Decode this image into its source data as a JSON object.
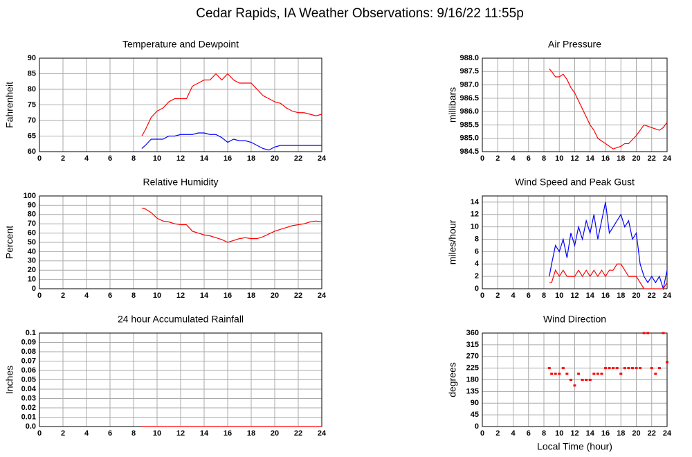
{
  "title": "Cedar Rapids, IA Weather Observations: 9/16/22 11:55p",
  "chart_data": [
    {
      "type": "line",
      "title": "Temperature and Dewpoint",
      "ylabel": "Fahrenheit",
      "x": [
        8.7,
        9,
        9.5,
        10,
        10.5,
        11,
        11.5,
        12,
        12.5,
        13,
        13.5,
        14,
        14.5,
        15,
        15.5,
        16,
        16.5,
        17,
        17.5,
        18,
        18.5,
        19,
        19.5,
        20,
        20.5,
        21,
        21.5,
        22,
        22.5,
        23,
        23.5,
        24
      ],
      "series": [
        {
          "color": "#ff0000",
          "values": [
            65,
            67,
            71,
            73,
            74,
            76,
            77,
            77,
            77,
            81,
            82,
            83,
            83,
            85,
            83,
            85,
            83,
            82,
            82,
            82,
            80,
            78,
            77,
            76,
            75.5,
            74,
            73,
            72.5,
            72.5,
            72,
            71.5,
            72
          ]
        },
        {
          "color": "#0000ff",
          "values": [
            61,
            62,
            64,
            64,
            64,
            65,
            65,
            65.5,
            65.5,
            65.5,
            66,
            66,
            65.5,
            65.5,
            64.5,
            63,
            64,
            63.5,
            63.5,
            63,
            62,
            61,
            60.5,
            61.5,
            62,
            62,
            62,
            62,
            62,
            62,
            62,
            62
          ]
        }
      ],
      "xlim": [
        0,
        24
      ],
      "xticks": [
        0,
        2,
        4,
        6,
        8,
        10,
        12,
        14,
        16,
        18,
        20,
        22,
        24
      ],
      "ylim": [
        60,
        90
      ],
      "yticks": [
        60,
        65,
        70,
        75,
        80,
        85,
        90
      ],
      "grid": true
    },
    {
      "type": "line",
      "title": "Air Pressure",
      "ylabel": "millibars",
      "x": [
        8.7,
        9,
        9.5,
        10,
        10.5,
        11,
        11.5,
        12,
        12.5,
        13,
        13.5,
        14,
        14.5,
        15,
        15.5,
        16,
        16.5,
        17,
        17.5,
        18,
        18.5,
        19,
        19.5,
        20,
        20.5,
        21,
        21.5,
        22,
        22.5,
        23,
        23.5,
        24
      ],
      "series": [
        {
          "color": "#ff0000",
          "values": [
            987.6,
            987.5,
            987.3,
            987.3,
            987.4,
            987.2,
            986.9,
            986.7,
            986.4,
            986.1,
            985.8,
            985.5,
            985.3,
            985.0,
            984.9,
            984.8,
            984.7,
            984.6,
            984.65,
            984.7,
            984.8,
            984.8,
            984.95,
            985.1,
            985.3,
            985.5,
            985.45,
            985.4,
            985.35,
            985.3,
            985.4,
            985.6
          ]
        }
      ],
      "xlim": [
        0,
        24
      ],
      "xticks": [
        0,
        2,
        4,
        6,
        8,
        10,
        12,
        14,
        16,
        18,
        20,
        22,
        24
      ],
      "ylim": [
        984.5,
        988
      ],
      "yticks": [
        984.5,
        {
          "value": 985,
          "label": "985.0"
        },
        985.5,
        {
          "value": 986,
          "label": "986.0"
        },
        986.5,
        {
          "value": 987,
          "label": "987.0"
        },
        987.5,
        {
          "value": 988,
          "label": "988.0"
        }
      ],
      "grid": true
    },
    {
      "type": "line",
      "title": "Relative Humidity",
      "ylabel": "Percent",
      "x": [
        8.7,
        9,
        9.5,
        10,
        10.5,
        11,
        11.5,
        12,
        12.5,
        13,
        13.5,
        14,
        14.5,
        15,
        15.5,
        16,
        16.5,
        17,
        17.5,
        18,
        18.5,
        19,
        19.5,
        20,
        20.5,
        21,
        21.5,
        22,
        22.5,
        23,
        23.5,
        24
      ],
      "series": [
        {
          "color": "#ff0000",
          "values": [
            87,
            86,
            82,
            76,
            73,
            72,
            70,
            69,
            69,
            62,
            60,
            58,
            57,
            55,
            53,
            50,
            52,
            54,
            55,
            54,
            54,
            56,
            59,
            62,
            64,
            66,
            68,
            69,
            70,
            72,
            73,
            72
          ]
        }
      ],
      "xlim": [
        0,
        24
      ],
      "xticks": [
        0,
        2,
        4,
        6,
        8,
        10,
        12,
        14,
        16,
        18,
        20,
        22,
        24
      ],
      "ylim": [
        0,
        100
      ],
      "yticks": [
        0,
        10,
        20,
        30,
        40,
        50,
        60,
        70,
        80,
        90,
        100
      ],
      "grid": true
    },
    {
      "type": "line",
      "title": "Wind Speed and Peak Gust",
      "ylabel": "miles/hour",
      "x": [
        8.7,
        9,
        9.5,
        10,
        10.5,
        11,
        11.5,
        12,
        12.5,
        13,
        13.5,
        14,
        14.5,
        15,
        15.5,
        16,
        16.5,
        17,
        17.5,
        18,
        18.5,
        19,
        19.5,
        20,
        20.5,
        21,
        21.5,
        22,
        22.5,
        23,
        23.5,
        24
      ],
      "series": [
        {
          "color": "#0000ff",
          "values": [
            2,
            4,
            7,
            6,
            8,
            5,
            9,
            7,
            10,
            8,
            11,
            9,
            12,
            8,
            11,
            14,
            9,
            10,
            11,
            12,
            10,
            11,
            8,
            9,
            4,
            2,
            1,
            2,
            1,
            2,
            0,
            3
          ]
        },
        {
          "color": "#ff0000",
          "values": [
            1,
            1,
            3,
            2,
            3,
            2,
            2,
            2,
            3,
            2,
            3,
            2,
            3,
            2,
            3,
            2,
            3,
            3,
            4,
            4,
            3,
            2,
            2,
            2,
            1,
            0,
            0,
            0,
            0,
            0,
            0,
            1
          ]
        }
      ],
      "xlim": [
        0,
        24
      ],
      "xticks": [
        0,
        2,
        4,
        6,
        8,
        10,
        12,
        14,
        16,
        18,
        20,
        22,
        24
      ],
      "ylim": [
        0,
        15
      ],
      "yticks": [
        0,
        2,
        4,
        6,
        8,
        10,
        12,
        14
      ],
      "grid": true
    },
    {
      "type": "line",
      "title": "24 hour Accumulated Rainfall",
      "ylabel": "Inches",
      "x": [
        8.7,
        24
      ],
      "series": [
        {
          "color": "#ff0000",
          "values": [
            0,
            0
          ]
        }
      ],
      "xlim": [
        0,
        24
      ],
      "xticks": [
        0,
        2,
        4,
        6,
        8,
        10,
        12,
        14,
        16,
        18,
        20,
        22,
        24
      ],
      "ylim": [
        0,
        0.1
      ],
      "yticks": [
        {
          "value": 0,
          "label": "0.0"
        },
        0.01,
        0.02,
        0.03,
        0.04,
        0.05,
        0.06,
        0.07,
        0.08,
        0.09,
        0.1
      ],
      "grid": true
    },
    {
      "type": "scatter",
      "title": "Wind Direction",
      "ylabel": "degrees",
      "xlabel": "Local Time (hour)",
      "x": [
        8.7,
        9,
        9.5,
        10,
        10.5,
        11,
        11.5,
        12,
        12.5,
        13,
        13.5,
        14,
        14.5,
        15,
        15.5,
        16,
        16.5,
        17,
        17.5,
        18,
        18.5,
        19,
        19.5,
        20,
        20.5,
        21,
        21.5,
        22,
        22.5,
        23,
        23.5,
        24
      ],
      "series": [
        {
          "color": "#ff0000",
          "values": [
            225,
            203,
            203,
            203,
            225,
            203,
            180,
            158,
            203,
            180,
            180,
            180,
            203,
            203,
            203,
            225,
            225,
            225,
            225,
            203,
            225,
            225,
            225,
            225,
            225,
            360,
            360,
            225,
            203,
            225,
            360,
            248
          ]
        }
      ],
      "xlim": [
        0,
        24
      ],
      "xticks": [
        0,
        2,
        4,
        6,
        8,
        10,
        12,
        14,
        16,
        18,
        20,
        22,
        24
      ],
      "ylim": [
        0,
        360
      ],
      "yticks": [
        0,
        45,
        90,
        135,
        180,
        225,
        270,
        315,
        360
      ],
      "grid": true
    }
  ]
}
